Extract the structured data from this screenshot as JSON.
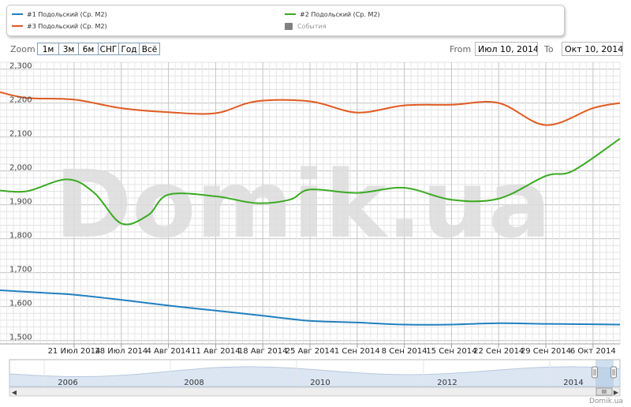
{
  "legend": {
    "items": [
      {
        "label": "#1 Подольский (Ср. М2)",
        "color": "#2080c0",
        "kind": "line"
      },
      {
        "label": "#2 Подольский (Ср. М2)",
        "color": "#3aaa22",
        "kind": "line"
      },
      {
        "label": "#3 Подольский (Ср. М2)",
        "color": "#e05a20",
        "kind": "line"
      },
      {
        "label": "События",
        "color": "#808080",
        "kind": "box"
      }
    ]
  },
  "zoom": {
    "label": "Zoom",
    "buttons": [
      "1м",
      "3м",
      "6м",
      "СНГ",
      "Год",
      "Всё"
    ]
  },
  "range": {
    "from_label": "From",
    "from_value": "Июл 10, 2014",
    "to_label": "To",
    "to_value": "Окт 10, 2014"
  },
  "watermark": "Domik.ua",
  "credit": "Domik.ua",
  "navigator": {
    "years": [
      "2006",
      "2008",
      "2010",
      "2012",
      "2014"
    ],
    "left_arrow": "◀",
    "right_arrow": "▶"
  },
  "chart_data": {
    "type": "line",
    "x_tick_labels": [
      "21 Июл 2014",
      "28 Июл 2014",
      "4 Авг 2014",
      "11 Авг 2014",
      "18 Авг 2014",
      "25 Авг 2014",
      "1 Сен 2014",
      "8 Сен 2014",
      "15 Сен 2014",
      "22 Сен 2014",
      "29 Сен 2014",
      "6 Окт 2014"
    ],
    "x_range": [
      "2014-07-10",
      "2014-10-10"
    ],
    "y_tick_labels": [
      "1,500",
      "1,600",
      "1,700",
      "1,800",
      "1,900",
      "2,000",
      "2,100",
      "2,200",
      "2,300"
    ],
    "ylim": [
      1490,
      2320
    ],
    "grid": true,
    "legend_position": "top",
    "series": [
      {
        "name": "#1 Подольский (Ср. М2)",
        "color": "#2080c0",
        "points": [
          [
            "2014-07-10",
            1648
          ],
          [
            "2014-07-17",
            1640
          ],
          [
            "2014-07-21",
            1635
          ],
          [
            "2014-07-28",
            1620
          ],
          [
            "2014-08-04",
            1603
          ],
          [
            "2014-08-11",
            1588
          ],
          [
            "2014-08-18",
            1573
          ],
          [
            "2014-08-25",
            1558
          ],
          [
            "2014-09-01",
            1553
          ],
          [
            "2014-09-08",
            1547
          ],
          [
            "2014-09-15",
            1547
          ],
          [
            "2014-09-22",
            1551
          ],
          [
            "2014-09-29",
            1549
          ],
          [
            "2014-10-06",
            1548
          ],
          [
            "2014-10-10",
            1547
          ]
        ]
      },
      {
        "name": "#2 Подольский (Ср. М2)",
        "color": "#3aaa22",
        "points": [
          [
            "2014-07-10",
            1942
          ],
          [
            "2014-07-14",
            1940
          ],
          [
            "2014-07-20",
            1975
          ],
          [
            "2014-07-24",
            1935
          ],
          [
            "2014-07-28",
            1845
          ],
          [
            "2014-08-01",
            1870
          ],
          [
            "2014-08-04",
            1930
          ],
          [
            "2014-08-11",
            1925
          ],
          [
            "2014-08-17",
            1905
          ],
          [
            "2014-08-22",
            1915
          ],
          [
            "2014-08-25",
            1945
          ],
          [
            "2014-09-01",
            1935
          ],
          [
            "2014-09-08",
            1950
          ],
          [
            "2014-09-15",
            1915
          ],
          [
            "2014-09-22",
            1918
          ],
          [
            "2014-09-29",
            1985
          ],
          [
            "2014-10-03",
            2000
          ],
          [
            "2014-10-10",
            2095
          ]
        ]
      },
      {
        "name": "#3 Подольский (Ср. М2)",
        "color": "#e05a20",
        "points": [
          [
            "2014-07-10",
            2232
          ],
          [
            "2014-07-14",
            2215
          ],
          [
            "2014-07-21",
            2210
          ],
          [
            "2014-07-28",
            2185
          ],
          [
            "2014-08-04",
            2173
          ],
          [
            "2014-08-11",
            2170
          ],
          [
            "2014-08-17",
            2205
          ],
          [
            "2014-08-25",
            2205
          ],
          [
            "2014-09-01",
            2172
          ],
          [
            "2014-09-08",
            2193
          ],
          [
            "2014-09-15",
            2195
          ],
          [
            "2014-09-22",
            2200
          ],
          [
            "2014-09-29",
            2135
          ],
          [
            "2014-10-06",
            2185
          ],
          [
            "2014-10-10",
            2200
          ]
        ]
      }
    ]
  }
}
